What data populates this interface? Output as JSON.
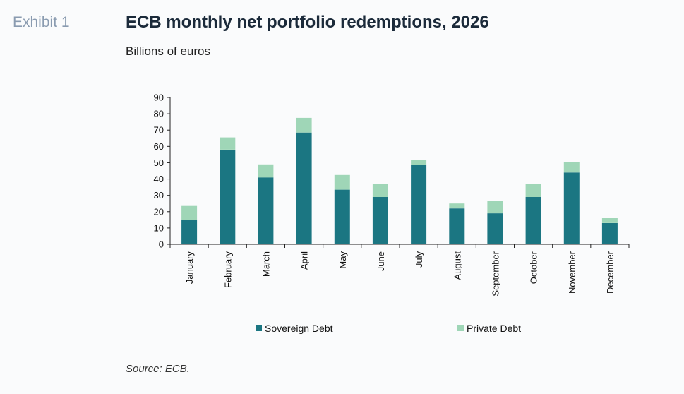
{
  "header": {
    "exhibit_label": "Exhibit 1",
    "title": "ECB monthly net portfolio redemptions, 2026",
    "subtitle": "Billions of euros"
  },
  "footer": {
    "source": "Source: ECB."
  },
  "colors": {
    "sovereign": "#1b7682",
    "private": "#9fd6b7",
    "axis": "#222222"
  },
  "chart_data": {
    "type": "bar",
    "stacked": true,
    "title": "ECB monthly net portfolio redemptions, 2026",
    "ylabel": "Billions of euros",
    "ylim": [
      0,
      90
    ],
    "yticks": [
      0,
      10,
      20,
      30,
      40,
      50,
      60,
      70,
      80,
      90
    ],
    "categories": [
      "January",
      "February",
      "March",
      "April",
      "May",
      "June",
      "July",
      "August",
      "September",
      "October",
      "November",
      "December"
    ],
    "series": [
      {
        "name": "Sovereign Debt",
        "values": [
          15,
          58,
          41,
          68.5,
          33.5,
          29,
          48.5,
          22,
          19,
          29,
          44,
          13
        ]
      },
      {
        "name": "Private Debt",
        "values": [
          8.5,
          7.5,
          8,
          9,
          9,
          8,
          3,
          3,
          7.5,
          8,
          6.5,
          3
        ]
      }
    ],
    "legend": "bottom"
  }
}
